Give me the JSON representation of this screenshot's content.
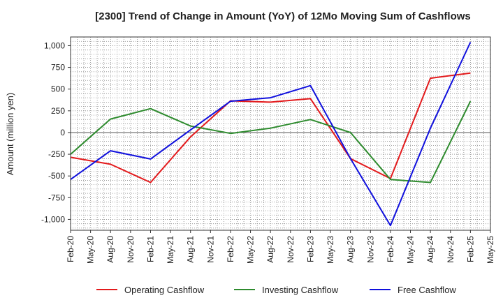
{
  "chart_data": {
    "type": "line",
    "title": "[2300]  Trend of Change in Amount (YoY) of 12Mo Moving Sum of Cashflows",
    "xlabel": "",
    "ylabel": "Amount (million yen)",
    "ylim": [
      -1125,
      1100
    ],
    "yticks": [
      1000,
      750,
      500,
      250,
      0,
      -250,
      -500,
      -750,
      -1000
    ],
    "ytick_labels": [
      "1,000",
      "750",
      "500",
      "250",
      "0",
      "-250",
      "-500",
      "-750",
      "-1,000"
    ],
    "categories": [
      "Feb-20",
      "May-20",
      "Aug-20",
      "Nov-20",
      "Feb-21",
      "May-21",
      "Aug-21",
      "Nov-21",
      "Feb-22",
      "May-22",
      "Aug-22",
      "Nov-22",
      "Feb-23",
      "May-23",
      "Aug-23",
      "Nov-23",
      "Feb-24",
      "May-24",
      "Aug-24",
      "Nov-24",
      "Feb-25",
      "May-25"
    ],
    "grid": true,
    "legend_position": "bottom",
    "series": [
      {
        "name": "Operating Cashflow",
        "color": "#e31a1c",
        "points": [
          [
            "Feb-20",
            -285
          ],
          [
            "Aug-20",
            -365
          ],
          [
            "Feb-21",
            -575
          ],
          [
            "Aug-21",
            -50
          ],
          [
            "Feb-22",
            365
          ],
          [
            "Aug-22",
            350
          ],
          [
            "Feb-23",
            390
          ],
          [
            "Aug-23",
            -300
          ],
          [
            "Feb-24",
            -530
          ],
          [
            "Aug-24",
            625
          ],
          [
            "Feb-25",
            685
          ]
        ]
      },
      {
        "name": "Investing Cashflow",
        "color": "#2e8b2e",
        "points": [
          [
            "Feb-20",
            -250
          ],
          [
            "Aug-20",
            155
          ],
          [
            "Feb-21",
            275
          ],
          [
            "Aug-21",
            75
          ],
          [
            "Feb-22",
            -10
          ],
          [
            "Aug-22",
            50
          ],
          [
            "Feb-23",
            150
          ],
          [
            "Aug-23",
            0
          ],
          [
            "Feb-24",
            -540
          ],
          [
            "Aug-24",
            -575
          ],
          [
            "Feb-25",
            360
          ]
        ]
      },
      {
        "name": "Free Cashflow",
        "color": "#1010dd",
        "points": [
          [
            "Feb-20",
            -540
          ],
          [
            "Aug-20",
            -210
          ],
          [
            "Feb-21",
            -305
          ],
          [
            "Aug-21",
            30
          ],
          [
            "Feb-22",
            360
          ],
          [
            "Aug-22",
            400
          ],
          [
            "Feb-23",
            540
          ],
          [
            "Aug-23",
            -300
          ],
          [
            "Feb-24",
            -1070
          ],
          [
            "Aug-24",
            50
          ],
          [
            "Feb-25",
            1040
          ]
        ]
      }
    ]
  }
}
